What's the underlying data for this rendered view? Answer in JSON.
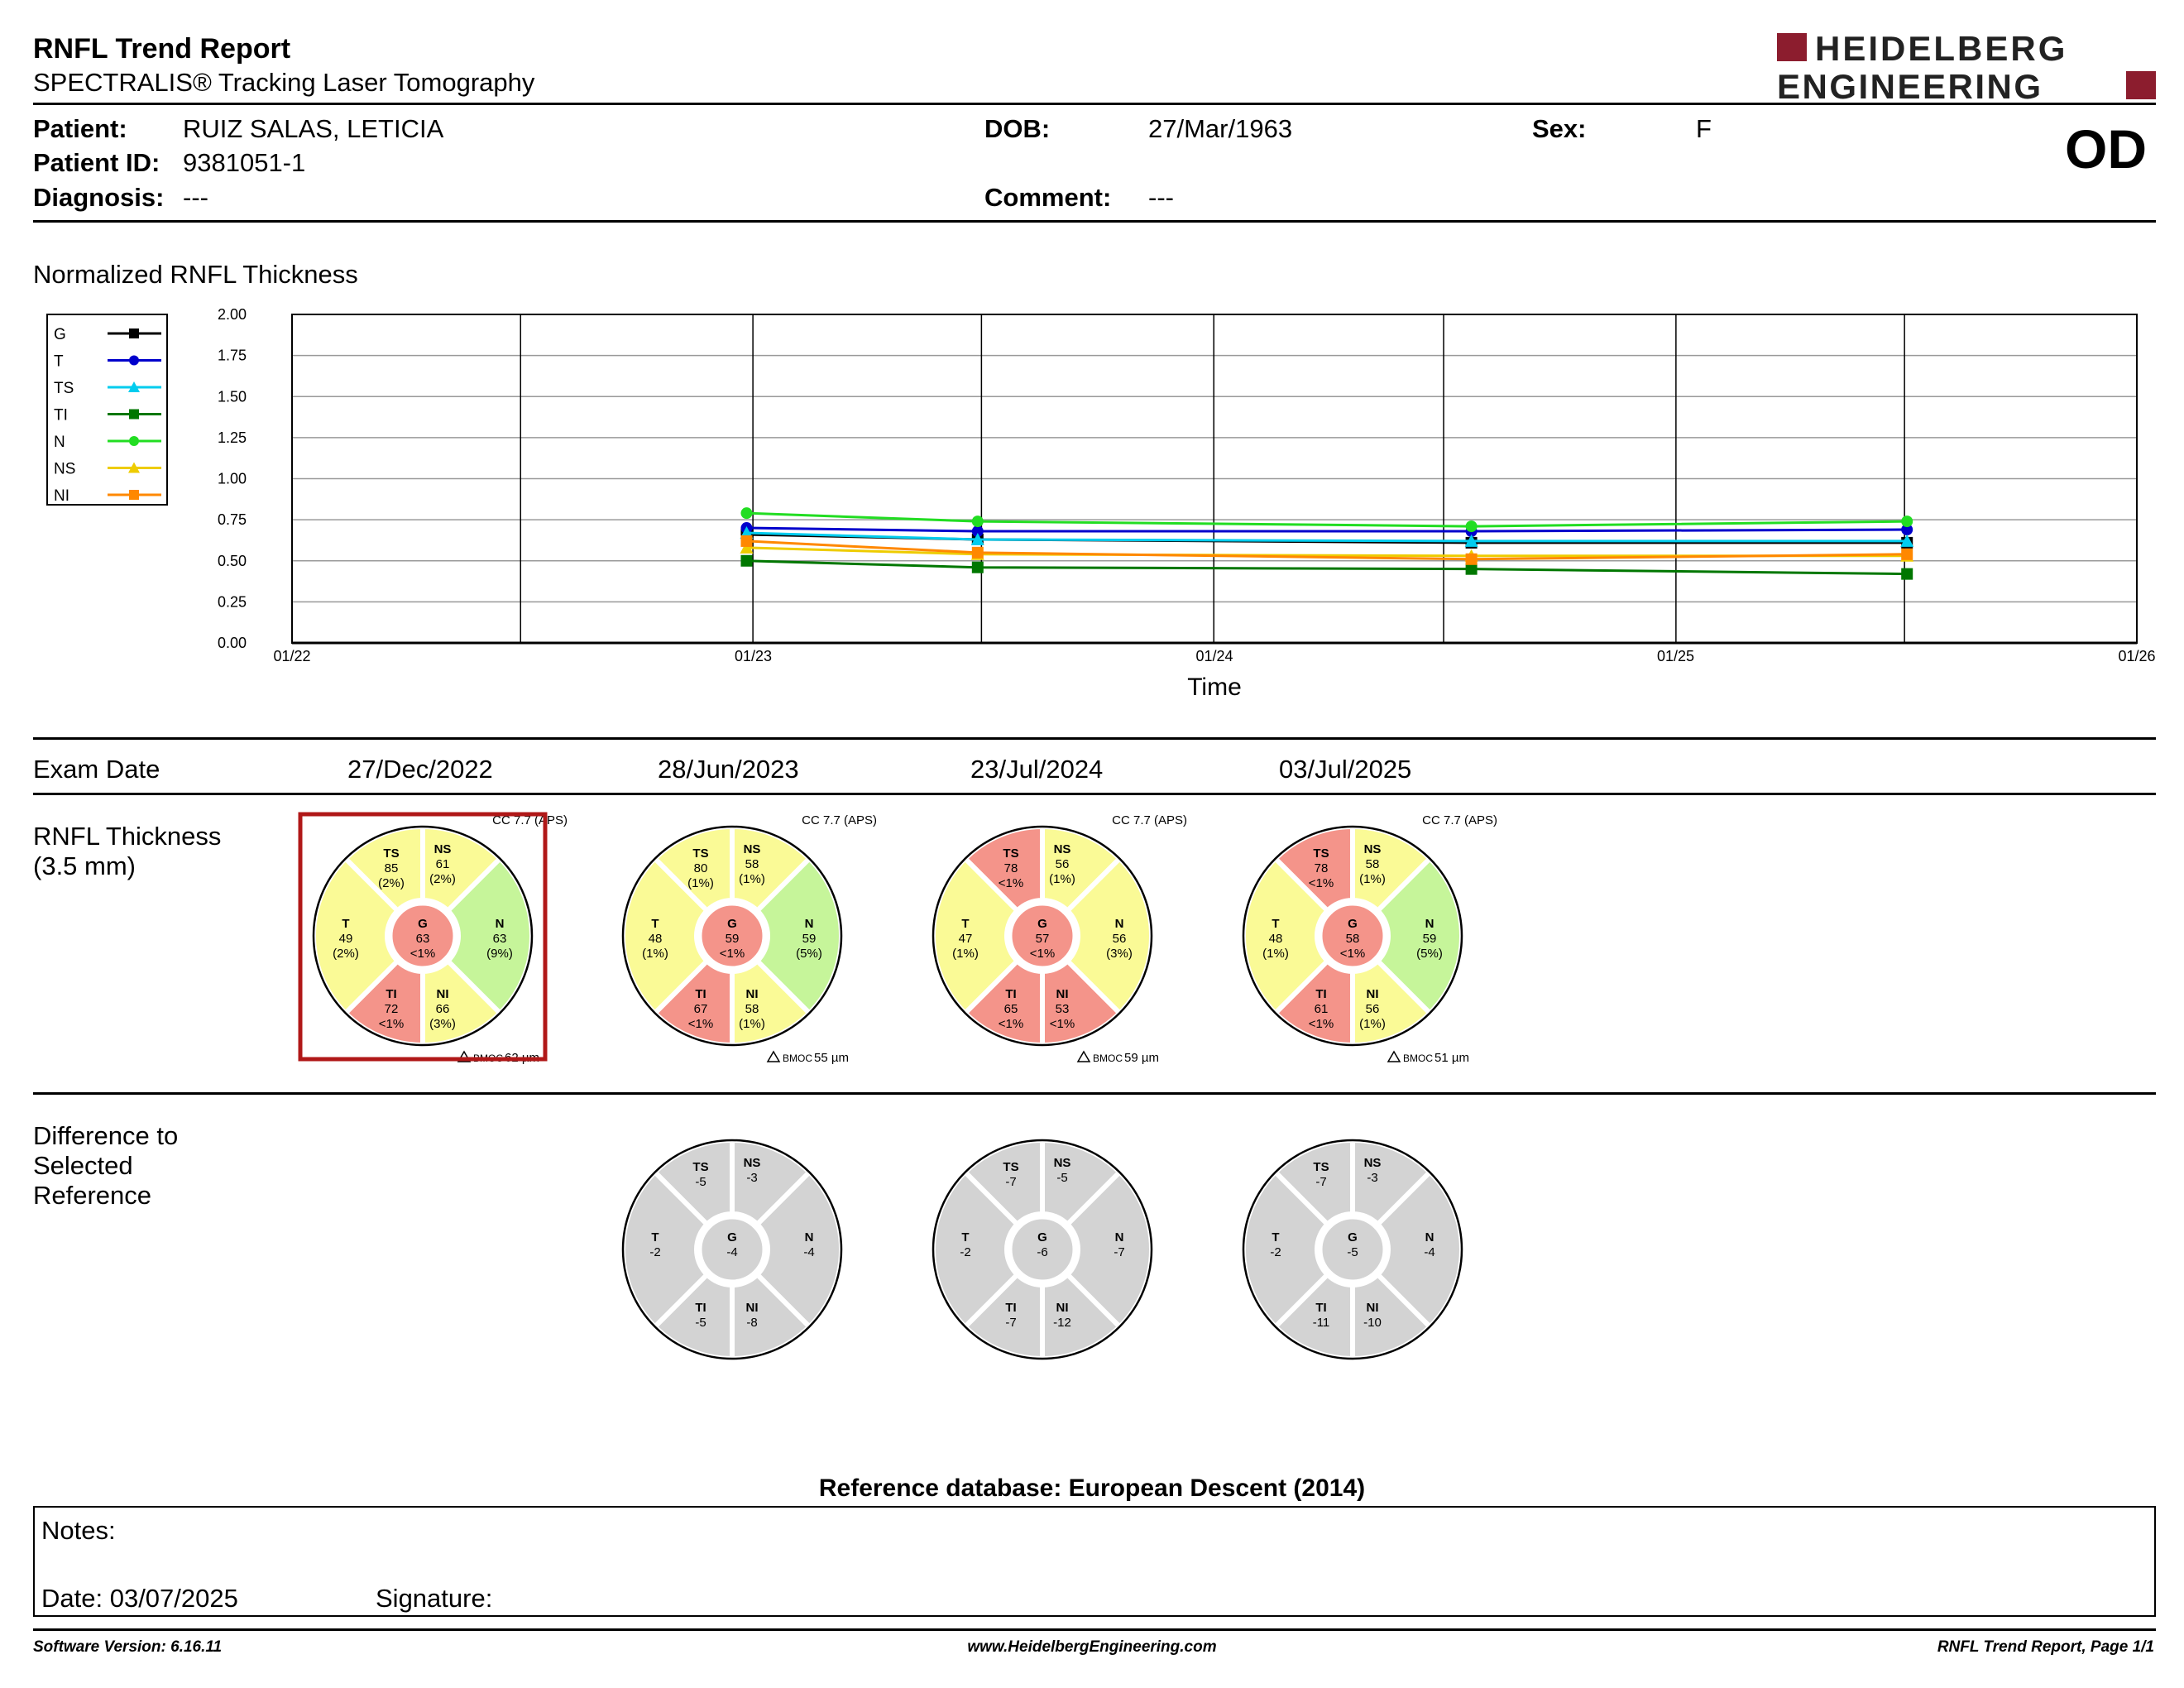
{
  "header": {
    "title": "RNFL Trend Report",
    "subtitle": "SPECTRALIS® Tracking Laser Tomography",
    "logo_line1": "HEIDELBERG",
    "logo_line2": "ENGINEERING",
    "brand_color": "#8c1d2e"
  },
  "patient": {
    "patient_label": "Patient:",
    "patient_value": "RUIZ SALAS, LETICIA",
    "id_label": "Patient ID:",
    "id_value": "9381051-1",
    "diagnosis_label": "Diagnosis:",
    "diagnosis_value": "---",
    "dob_label": "DOB:",
    "dob_value": "27/Mar/1963",
    "comment_label": "Comment:",
    "comment_value": "---",
    "sex_label": "Sex:",
    "sex_value": "F",
    "eye": "OD"
  },
  "chart_section_title": "Normalized RNFL Thickness",
  "chart_data": {
    "type": "line",
    "title": "",
    "xlabel": "Time",
    "ylabel": "",
    "ylim": [
      0,
      2
    ],
    "yticks": [
      "0.00",
      "0.25",
      "0.50",
      "0.75",
      "1.00",
      "1.25",
      "1.50",
      "1.75",
      "2.00"
    ],
    "x_tick_labels": [
      "01/22",
      "01/23",
      "01/24",
      "01/25",
      "01/26"
    ],
    "grid": true,
    "legend_position": "left",
    "x": [
      "2022-12-27",
      "2023-06-28",
      "2024-07-23",
      "2025-07-03"
    ],
    "series": [
      {
        "name": "G",
        "color": "#000000",
        "marker": "square",
        "values": [
          0.66,
          0.63,
          0.61,
          0.61
        ]
      },
      {
        "name": "T",
        "color": "#0000cc",
        "marker": "circle",
        "values": [
          0.7,
          0.68,
          0.68,
          0.69
        ]
      },
      {
        "name": "TS",
        "color": "#00ccee",
        "marker": "triangle",
        "values": [
          0.67,
          0.63,
          0.62,
          0.62
        ]
      },
      {
        "name": "TI",
        "color": "#007700",
        "marker": "square",
        "values": [
          0.5,
          0.46,
          0.45,
          0.42
        ]
      },
      {
        "name": "N",
        "color": "#22dd22",
        "marker": "circle",
        "values": [
          0.79,
          0.74,
          0.71,
          0.74
        ]
      },
      {
        "name": "NS",
        "color": "#eecc00",
        "marker": "triangle",
        "values": [
          0.58,
          0.54,
          0.53,
          0.53
        ]
      },
      {
        "name": "NI",
        "color": "#ff8800",
        "marker": "square",
        "values": [
          0.62,
          0.55,
          0.51,
          0.54
        ]
      }
    ]
  },
  "exam": {
    "exam_date_label": "Exam Date",
    "dates": [
      "27/Dec/2022",
      "28/Jun/2023",
      "23/Jul/2024",
      "03/Jul/2025"
    ],
    "thickness_label_line1": "RNFL Thickness",
    "thickness_label_line2": "(3.5 mm)",
    "difference_label_line1": "Difference to",
    "difference_label_line2": "Selected",
    "difference_label_line3": "Reference"
  },
  "thickness_circles": [
    {
      "cc": "CC 7.7 (APS)",
      "bmoc": "BMOC 62 µm",
      "selected": true,
      "sectors": {
        "G": {
          "value": "63",
          "pct": "<1%",
          "status": "red"
        },
        "T": {
          "value": "49",
          "pct": "(2%)",
          "status": "yellow"
        },
        "TS": {
          "value": "85",
          "pct": "(2%)",
          "status": "yellow"
        },
        "NS": {
          "value": "61",
          "pct": "(2%)",
          "status": "yellow"
        },
        "N": {
          "value": "63",
          "pct": "(9%)",
          "status": "green"
        },
        "NI": {
          "value": "66",
          "pct": "(3%)",
          "status": "yellow"
        },
        "TI": {
          "value": "72",
          "pct": "<1%",
          "status": "red"
        }
      }
    },
    {
      "cc": "CC 7.7 (APS)",
      "bmoc": "BMOC 55 µm",
      "selected": false,
      "sectors": {
        "G": {
          "value": "59",
          "pct": "<1%",
          "status": "red"
        },
        "T": {
          "value": "48",
          "pct": "(1%)",
          "status": "yellow"
        },
        "TS": {
          "value": "80",
          "pct": "(1%)",
          "status": "yellow"
        },
        "NS": {
          "value": "58",
          "pct": "(1%)",
          "status": "yellow"
        },
        "N": {
          "value": "59",
          "pct": "(5%)",
          "status": "green"
        },
        "NI": {
          "value": "58",
          "pct": "(1%)",
          "status": "yellow"
        },
        "TI": {
          "value": "67",
          "pct": "<1%",
          "status": "red"
        }
      }
    },
    {
      "cc": "CC 7.7 (APS)",
      "bmoc": "BMOC 59 µm",
      "selected": false,
      "sectors": {
        "G": {
          "value": "57",
          "pct": "<1%",
          "status": "red"
        },
        "T": {
          "value": "47",
          "pct": "(1%)",
          "status": "yellow"
        },
        "TS": {
          "value": "78",
          "pct": "<1%",
          "status": "red"
        },
        "NS": {
          "value": "56",
          "pct": "(1%)",
          "status": "yellow"
        },
        "N": {
          "value": "56",
          "pct": "(3%)",
          "status": "yellow"
        },
        "NI": {
          "value": "53",
          "pct": "<1%",
          "status": "red"
        },
        "TI": {
          "value": "65",
          "pct": "<1%",
          "status": "red"
        }
      }
    },
    {
      "cc": "CC 7.7 (APS)",
      "bmoc": "BMOC 51 µm",
      "selected": false,
      "sectors": {
        "G": {
          "value": "58",
          "pct": "<1%",
          "status": "red"
        },
        "T": {
          "value": "48",
          "pct": "(1%)",
          "status": "yellow"
        },
        "TS": {
          "value": "78",
          "pct": "<1%",
          "status": "red"
        },
        "NS": {
          "value": "58",
          "pct": "(1%)",
          "status": "yellow"
        },
        "N": {
          "value": "59",
          "pct": "(5%)",
          "status": "green"
        },
        "NI": {
          "value": "56",
          "pct": "(1%)",
          "status": "yellow"
        },
        "TI": {
          "value": "61",
          "pct": "<1%",
          "status": "red"
        }
      }
    }
  ],
  "difference_circles": [
    null,
    {
      "sectors": {
        "G": "-4",
        "T": "-2",
        "TS": "-5",
        "NS": "-3",
        "N": "-4",
        "NI": "-8",
        "TI": "-5"
      }
    },
    {
      "sectors": {
        "G": "-6",
        "T": "-2",
        "TS": "-7",
        "NS": "-5",
        "N": "-7",
        "NI": "-12",
        "TI": "-7"
      }
    },
    {
      "sectors": {
        "G": "-5",
        "T": "-2",
        "TS": "-7",
        "NS": "-3",
        "N": "-4",
        "NI": "-10",
        "TI": "-11"
      }
    }
  ],
  "colors": {
    "red": "#f4948a",
    "yellow": "#fafa96",
    "green": "#c6f59a",
    "gray": "#d3d3d3",
    "selected_border": "#b01818"
  },
  "reference_db": "Reference database: European Descent (2014)",
  "notes": {
    "notes_label": "Notes:",
    "date_label": "Date: 03/07/2025",
    "signature_label": "Signature:"
  },
  "footer": {
    "software": "Software Version: 6.16.11",
    "website": "www.HeidelbergEngineering.com",
    "page": "RNFL Trend Report, Page 1/1"
  }
}
